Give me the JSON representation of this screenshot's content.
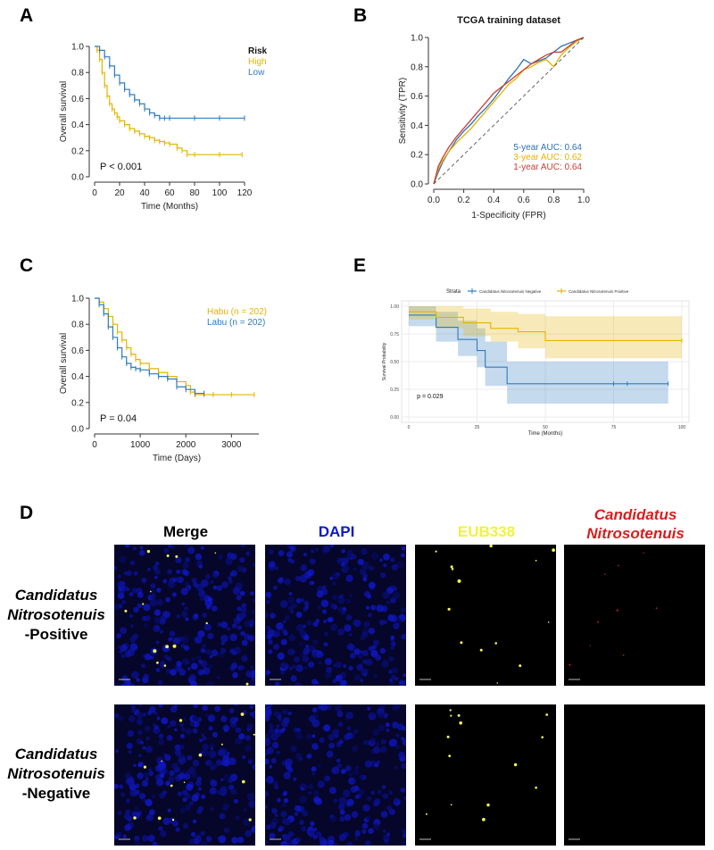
{
  "panels": {
    "A": "A",
    "B": "B",
    "C": "C",
    "D": "D",
    "E": "E"
  },
  "chart_data": [
    {
      "id": "A",
      "type": "line",
      "title": "",
      "xlabel": "Time (Months)",
      "ylabel": "Overall survival",
      "xlim": [
        0,
        120
      ],
      "ylim": [
        0,
        1.0
      ],
      "xticks": [
        0,
        20,
        40,
        60,
        80,
        100,
        120
      ],
      "yticks": [
        0.0,
        0.2,
        0.4,
        0.6,
        0.8,
        1.0
      ],
      "legend_title": "Risk",
      "annotation": "P < 0.001",
      "series": [
        {
          "name": "High",
          "color": "#E3B400",
          "x": [
            0,
            2,
            4,
            6,
            8,
            10,
            12,
            14,
            16,
            18,
            20,
            24,
            28,
            32,
            36,
            40,
            44,
            48,
            52,
            56,
            60,
            66,
            70,
            74,
            80,
            100,
            118
          ],
          "y": [
            1.0,
            0.97,
            0.9,
            0.8,
            0.7,
            0.62,
            0.56,
            0.52,
            0.49,
            0.46,
            0.43,
            0.4,
            0.37,
            0.35,
            0.33,
            0.31,
            0.3,
            0.28,
            0.27,
            0.26,
            0.25,
            0.22,
            0.2,
            0.17,
            0.17,
            0.17,
            0.17
          ]
        },
        {
          "name": "Low",
          "color": "#2E7BBF",
          "x": [
            0,
            4,
            8,
            12,
            16,
            20,
            24,
            28,
            32,
            36,
            40,
            44,
            48,
            52,
            56,
            60,
            80,
            100,
            120
          ],
          "y": [
            1.0,
            0.97,
            0.92,
            0.85,
            0.78,
            0.72,
            0.67,
            0.63,
            0.59,
            0.56,
            0.52,
            0.49,
            0.47,
            0.45,
            0.45,
            0.45,
            0.45,
            0.45,
            0.45
          ]
        }
      ]
    },
    {
      "id": "B",
      "type": "line",
      "title": "TCGA training dataset",
      "xlabel": "1-Specificity (FPR)",
      "ylabel": "Sensitivity (TPR)",
      "xlim": [
        0,
        1.0
      ],
      "ylim": [
        0,
        1.0
      ],
      "xticks": [
        0.0,
        0.2,
        0.4,
        0.6,
        0.8,
        1.0
      ],
      "yticks": [
        0.0,
        0.2,
        0.4,
        0.6,
        0.8,
        1.0
      ],
      "series": [
        {
          "name": "5-year AUC: 0.64",
          "color": "#2E6FB7",
          "x": [
            0,
            0.03,
            0.06,
            0.1,
            0.15,
            0.2,
            0.25,
            0.3,
            0.35,
            0.4,
            0.45,
            0.5,
            0.55,
            0.6,
            0.65,
            0.7,
            0.75,
            0.8,
            0.85,
            0.9,
            0.95,
            1.0
          ],
          "y": [
            0,
            0.08,
            0.15,
            0.22,
            0.3,
            0.36,
            0.41,
            0.47,
            0.52,
            0.58,
            0.65,
            0.72,
            0.78,
            0.85,
            0.82,
            0.84,
            0.86,
            0.9,
            0.94,
            0.96,
            0.98,
            1.0
          ]
        },
        {
          "name": "3-year AUC: 0.62",
          "color": "#E3B400",
          "x": [
            0,
            0.03,
            0.06,
            0.1,
            0.15,
            0.2,
            0.25,
            0.3,
            0.35,
            0.4,
            0.45,
            0.5,
            0.55,
            0.6,
            0.65,
            0.7,
            0.75,
            0.8,
            0.85,
            0.9,
            0.95,
            1.0
          ],
          "y": [
            0,
            0.1,
            0.16,
            0.22,
            0.28,
            0.33,
            0.38,
            0.44,
            0.5,
            0.56,
            0.62,
            0.68,
            0.72,
            0.78,
            0.8,
            0.83,
            0.85,
            0.8,
            0.88,
            0.93,
            0.97,
            1.0
          ]
        },
        {
          "name": "1-year AUC: 0.64",
          "color": "#C83C32",
          "x": [
            0,
            0.03,
            0.06,
            0.1,
            0.15,
            0.2,
            0.25,
            0.3,
            0.35,
            0.4,
            0.45,
            0.5,
            0.55,
            0.6,
            0.65,
            0.7,
            0.75,
            0.8,
            0.85,
            0.9,
            0.95,
            1.0
          ],
          "y": [
            0,
            0.12,
            0.18,
            0.25,
            0.32,
            0.38,
            0.44,
            0.5,
            0.56,
            0.62,
            0.66,
            0.7,
            0.74,
            0.78,
            0.82,
            0.85,
            0.88,
            0.9,
            0.9,
            0.94,
            0.98,
            1.0
          ]
        },
        {
          "name": "diagonal",
          "color": "#555555",
          "dashed": true,
          "x": [
            0,
            1
          ],
          "y": [
            0,
            1
          ]
        }
      ]
    },
    {
      "id": "C",
      "type": "line",
      "title": "",
      "xlabel": "Time (Days)",
      "ylabel": "Overall survival",
      "xlim": [
        0,
        3600
      ],
      "ylim": [
        0,
        1.0
      ],
      "xticks": [
        0,
        1000,
        2000,
        3000
      ],
      "yticks": [
        0.0,
        0.2,
        0.4,
        0.6,
        0.8,
        1.0
      ],
      "annotation": "P = 0.04",
      "series": [
        {
          "name": "Habu (n = 202)",
          "color": "#E3B400",
          "x": [
            0,
            100,
            200,
            300,
            400,
            500,
            600,
            700,
            800,
            900,
            1000,
            1200,
            1400,
            1600,
            1800,
            2000,
            2100,
            2200,
            2400,
            2600,
            3000,
            3500
          ],
          "y": [
            1.0,
            0.97,
            0.92,
            0.86,
            0.8,
            0.74,
            0.68,
            0.62,
            0.57,
            0.53,
            0.5,
            0.46,
            0.43,
            0.4,
            0.36,
            0.33,
            0.28,
            0.26,
            0.26,
            0.26,
            0.26,
            0.26
          ]
        },
        {
          "name": "Labu (n = 202)",
          "color": "#2E7BBF",
          "x": [
            0,
            100,
            200,
            300,
            400,
            500,
            600,
            700,
            800,
            900,
            1000,
            1200,
            1400,
            1600,
            1800,
            2000,
            2200,
            2400
          ],
          "y": [
            1.0,
            0.95,
            0.88,
            0.78,
            0.7,
            0.62,
            0.55,
            0.5,
            0.47,
            0.46,
            0.45,
            0.42,
            0.4,
            0.38,
            0.32,
            0.3,
            0.27,
            0.27
          ]
        }
      ]
    },
    {
      "id": "E",
      "type": "line",
      "title": "",
      "xlabel": "Time (Months)",
      "ylabel": "Survival Probability",
      "xlim": [
        0,
        100
      ],
      "ylim": [
        0,
        1.0
      ],
      "xticks": [
        0,
        25,
        50,
        75,
        100
      ],
      "yticks": [
        0.0,
        0.25,
        0.5,
        0.75,
        1.0
      ],
      "yticklabels": [
        "0.00",
        "0.25",
        "0.50",
        "0.75",
        "1.00"
      ],
      "legend_title": "Strata",
      "annotation": "p = 0.029",
      "series": [
        {
          "name": "Candidatus Nitrosotenuis Negative",
          "color": "#2E7BBF",
          "x": [
            0,
            10,
            18,
            25,
            28,
            36,
            95
          ],
          "y": [
            0.92,
            0.81,
            0.7,
            0.6,
            0.45,
            0.3,
            0.3
          ],
          "ci_low": [
            0.82,
            0.68,
            0.55,
            0.45,
            0.28,
            0.12,
            0.12
          ],
          "ci_high": [
            1.0,
            0.95,
            0.87,
            0.8,
            0.68,
            0.5,
            0.5
          ]
        },
        {
          "name": "Candidatus Nitrosotenuis Positive",
          "color": "#E3B400",
          "x": [
            0,
            10,
            20,
            30,
            40,
            50,
            100
          ],
          "y": [
            0.95,
            0.9,
            0.85,
            0.8,
            0.77,
            0.69,
            0.69
          ],
          "ci_low": [
            0.88,
            0.8,
            0.73,
            0.68,
            0.62,
            0.53,
            0.53
          ],
          "ci_high": [
            1.0,
            1.0,
            0.98,
            0.95,
            0.93,
            0.91,
            0.91
          ]
        }
      ]
    }
  ],
  "panelD": {
    "columns": {
      "merge": "Merge",
      "dapi": "DAPI",
      "eub": "EUB338",
      "cn1": "Candidatus",
      "cn2": "Nitrosotenuis"
    },
    "rows": [
      {
        "line1": "Candidatus",
        "line2": "Nitrosotenuis",
        "line3": "-Positive"
      },
      {
        "line1": "Candidatus",
        "line2": "Nitrosotenuis",
        "line3": "-Negative"
      }
    ],
    "colors": {
      "merge": "#000000",
      "dapi": "#0A1BC8",
      "eub": "#F2F23A",
      "cn": "#D81E1E"
    }
  }
}
